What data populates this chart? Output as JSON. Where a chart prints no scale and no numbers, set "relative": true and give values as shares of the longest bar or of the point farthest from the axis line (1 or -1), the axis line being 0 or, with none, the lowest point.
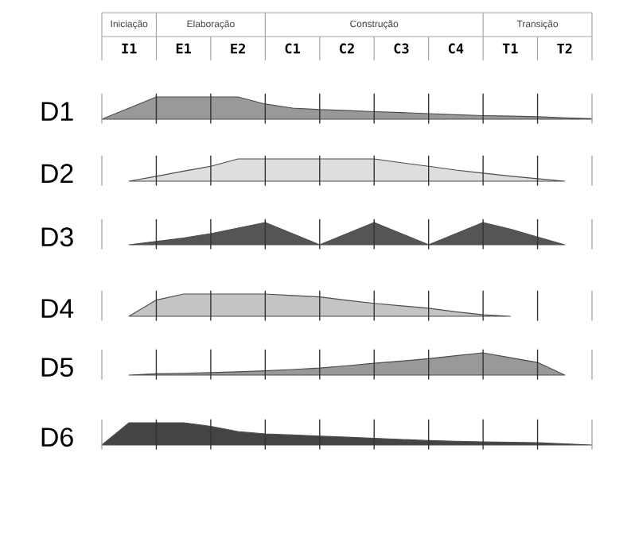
{
  "chart_data": [
    {
      "type": "other",
      "categories": [
        "I1",
        "E1",
        "E2",
        "C1",
        "C2",
        "C3",
        "C4",
        "T1",
        "T2"
      ],
      "annotations": [
        "Iniciação",
        "Elaboração",
        "Construção",
        "Transição"
      ]
    },
    {
      "type": "area",
      "title": "D1",
      "relative": true,
      "grid": "x",
      "color": "#999999",
      "categories": [
        null,
        null,
        null,
        null,
        null,
        null,
        null,
        null,
        null,
        null,
        null,
        null,
        null,
        null,
        null,
        null,
        null,
        null,
        null
      ],
      "values": [
        0,
        0.5,
        1,
        1,
        1,
        1,
        0.68,
        0.5,
        0.43,
        0.39,
        0.34,
        0.3,
        0.25,
        0.2,
        0.16,
        0.14,
        0.11,
        0.06,
        0.02
      ]
    },
    {
      "type": "area",
      "title": "D2",
      "relative": true,
      "grid": "x",
      "color": "#dedede",
      "categories": [
        null,
        null,
        null,
        null,
        null,
        null,
        null,
        null,
        null,
        null,
        null,
        null,
        null,
        null,
        null,
        null,
        null,
        null,
        null
      ],
      "values": [
        null,
        0,
        0.22,
        0.45,
        0.67,
        1,
        1,
        1,
        1,
        1,
        1,
        0.83,
        0.67,
        0.5,
        0.36,
        0.23,
        0.11,
        0,
        null
      ]
    },
    {
      "type": "area",
      "title": "D3",
      "relative": true,
      "grid": "x",
      "color": "#555555",
      "categories": [
        null,
        null,
        null,
        null,
        null,
        null,
        null,
        null,
        null,
        null,
        null,
        null,
        null,
        null,
        null,
        null,
        null,
        null,
        null
      ],
      "values": [
        null,
        0,
        0.15,
        0.3,
        0.5,
        0.75,
        1,
        0.5,
        0,
        0.5,
        1,
        0.5,
        0,
        0.5,
        1,
        0.7,
        0.35,
        0,
        null
      ]
    },
    {
      "type": "area",
      "title": "D4",
      "relative": true,
      "grid": "x",
      "color": "#c4c4c4",
      "categories": [
        null,
        null,
        null,
        null,
        null,
        null,
        null,
        null,
        null,
        null,
        null,
        null,
        null,
        null,
        null,
        null,
        null,
        null,
        null
      ],
      "values": [
        null,
        0,
        0.73,
        1,
        1,
        1,
        1,
        0.93,
        0.87,
        0.72,
        0.58,
        0.47,
        0.36,
        0.2,
        0.07,
        0,
        null,
        null,
        null
      ]
    },
    {
      "type": "area",
      "title": "D5",
      "relative": true,
      "grid": "x",
      "color": "#999999",
      "categories": [
        null,
        null,
        null,
        null,
        null,
        null,
        null,
        null,
        null,
        null,
        null,
        null,
        null,
        null,
        null,
        null,
        null,
        null,
        null
      ],
      "values": [
        null,
        0,
        0.06,
        0.08,
        0.11,
        0.15,
        0.19,
        0.25,
        0.32,
        0.42,
        0.53,
        0.63,
        0.74,
        0.87,
        1,
        0.78,
        0.57,
        0,
        null
      ]
    },
    {
      "type": "area",
      "title": "D6",
      "relative": true,
      "grid": "x",
      "color": "#444444",
      "categories": [
        null,
        null,
        null,
        null,
        null,
        null,
        null,
        null,
        null,
        null,
        null,
        null,
        null,
        null,
        null,
        null,
        null,
        null,
        null
      ],
      "values": [
        0,
        1,
        1,
        1,
        0.84,
        0.6,
        0.5,
        0.45,
        0.4,
        0.35,
        0.3,
        0.25,
        0.2,
        0.17,
        0.14,
        0.12,
        0.1,
        0.05,
        0
      ]
    }
  ]
}
